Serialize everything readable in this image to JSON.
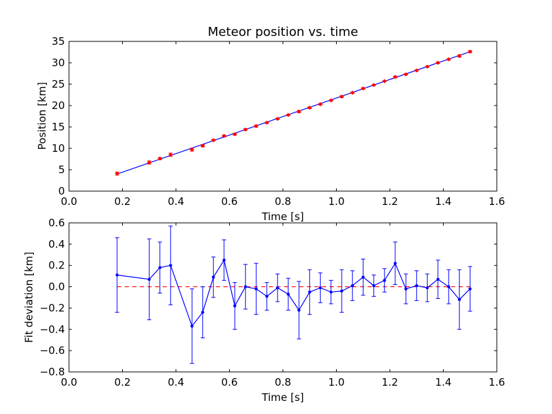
{
  "chart_data": [
    {
      "type": "scatter",
      "title": "Meteor position vs. time",
      "xlabel": "Time [s]",
      "ylabel": "Position [km]",
      "xlim": [
        0.0,
        1.6
      ],
      "ylim": [
        0,
        35
      ],
      "xticks": [
        "0.0",
        "0.2",
        "0.4",
        "0.6",
        "0.8",
        "1.0",
        "1.2",
        "1.4",
        "1.6"
      ],
      "yticks": [
        "0",
        "5",
        "10",
        "15",
        "20",
        "25",
        "30",
        "35"
      ],
      "grid": false,
      "legend": "none",
      "series": [
        {
          "kind": "points-with-errorbars",
          "color": "#ff0000",
          "x": [
            0.18,
            0.3,
            0.34,
            0.38,
            0.46,
            0.5,
            0.54,
            0.58,
            0.62,
            0.66,
            0.7,
            0.74,
            0.78,
            0.82,
            0.86,
            0.9,
            0.94,
            0.98,
            1.02,
            1.06,
            1.1,
            1.14,
            1.18,
            1.22,
            1.26,
            1.3,
            1.34,
            1.38,
            1.42,
            1.46,
            1.5
          ],
          "y": [
            4.1,
            6.7,
            7.6,
            8.5,
            9.7,
            10.6,
            11.9,
            12.9,
            13.3,
            14.4,
            15.2,
            16.0,
            16.9,
            17.8,
            18.6,
            19.5,
            20.3,
            21.2,
            22.1,
            23.0,
            24.0,
            24.8,
            25.7,
            26.7,
            27.3,
            28.2,
            29.1,
            30.0,
            30.8,
            31.6,
            32.6
          ],
          "yerr": [
            0.35,
            0.38,
            0.25,
            0.37,
            0.35,
            0.24,
            0.19,
            0.19,
            0.22,
            0.21,
            0.24,
            0.16,
            0.14,
            0.15,
            0.27,
            0.21,
            0.17,
            0.12,
            0.2,
            0.14,
            0.17,
            0.1,
            0.11,
            0.2,
            0.15,
            0.14,
            0.13,
            0.18,
            0.16,
            0.28,
            0.21
          ]
        },
        {
          "kind": "fit-line",
          "color": "#0000ff",
          "x": [
            0.18,
            1.5
          ],
          "y": [
            4.0,
            32.6
          ]
        }
      ]
    },
    {
      "type": "line",
      "title": "",
      "xlabel": "Time [s]",
      "ylabel": "Fit deviation [km]",
      "xlim": [
        0.0,
        1.6
      ],
      "ylim": [
        -0.8,
        0.6
      ],
      "xticks": [
        "0.0",
        "0.2",
        "0.4",
        "0.6",
        "0.8",
        "1.0",
        "1.2",
        "1.4",
        "1.6"
      ],
      "yticks": [
        "−0.8",
        "−0.6",
        "−0.4",
        "−0.2",
        "0.0",
        "0.2",
        "0.4",
        "0.6"
      ],
      "grid": false,
      "legend": "none",
      "series": [
        {
          "kind": "line-with-errorbars",
          "color": "#0000ff",
          "x": [
            0.18,
            0.3,
            0.34,
            0.38,
            0.46,
            0.5,
            0.54,
            0.58,
            0.62,
            0.66,
            0.7,
            0.74,
            0.78,
            0.82,
            0.86,
            0.9,
            0.94,
            0.98,
            1.02,
            1.06,
            1.1,
            1.14,
            1.18,
            1.22,
            1.26,
            1.3,
            1.34,
            1.38,
            1.42,
            1.46,
            1.5
          ],
          "y": [
            0.11,
            0.07,
            0.18,
            0.2,
            -0.37,
            -0.24,
            0.09,
            0.25,
            -0.18,
            0.0,
            -0.02,
            -0.09,
            -0.01,
            -0.07,
            -0.22,
            -0.05,
            -0.01,
            -0.05,
            -0.04,
            0.01,
            0.09,
            0.01,
            0.06,
            0.22,
            -0.02,
            0.01,
            -0.01,
            0.07,
            0.0,
            -0.12,
            -0.02
          ],
          "yerr": [
            0.35,
            0.38,
            0.24,
            0.37,
            0.35,
            0.24,
            0.19,
            0.19,
            0.22,
            0.21,
            0.24,
            0.13,
            0.13,
            0.15,
            0.27,
            0.21,
            0.14,
            0.11,
            0.2,
            0.14,
            0.17,
            0.1,
            0.11,
            0.2,
            0.14,
            0.14,
            0.13,
            0.18,
            0.16,
            0.28,
            0.21
          ]
        },
        {
          "kind": "reference-line",
          "style": "dashed",
          "color": "#ff0000",
          "x": [
            0.18,
            1.5
          ],
          "y": [
            0.0,
            0.0
          ]
        }
      ]
    }
  ]
}
